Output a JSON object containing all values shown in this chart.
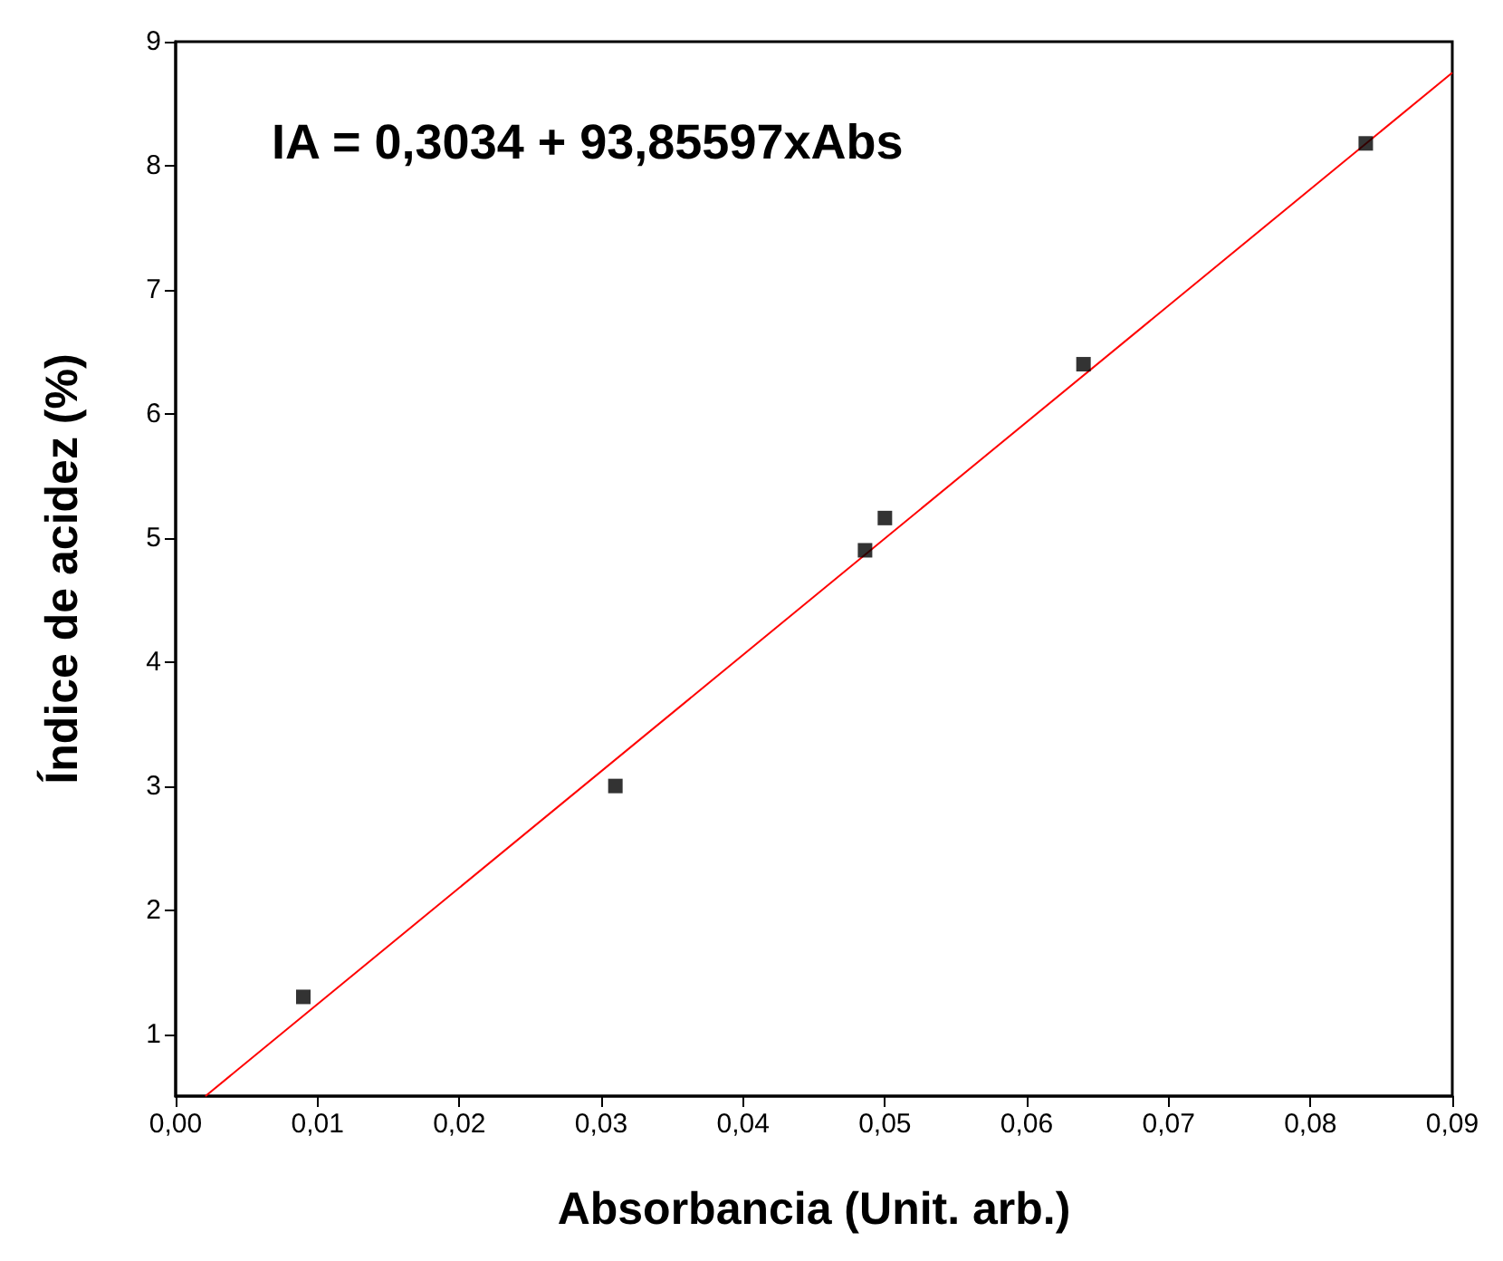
{
  "chart_data": {
    "type": "scatter",
    "xlabel": "Absorbancia (Unit. arb.)",
    "ylabel": "Índice de acidez (%)",
    "annotations": [
      "IA = 0,3034 + 93,85597xAbs"
    ],
    "marker": "square",
    "series": [
      {
        "color": "#000000",
        "x": [
          0.009,
          0.031,
          0.0486,
          0.05,
          0.064,
          0.0839
        ],
        "values": [
          1.3,
          3.0,
          4.9,
          5.16,
          6.4,
          8.18
        ]
      },
      {
        "type": "line",
        "color": "#ff0000",
        "marker": "none",
        "x": [
          0.0021,
          0.09
        ],
        "values": [
          0.5,
          8.75
        ]
      }
    ],
    "xlim": [
      0,
      0.09
    ],
    "xticks": [
      {
        "value": 0,
        "label": "0,00"
      },
      {
        "value": 0.01,
        "label": "0,01"
      },
      {
        "value": 0.02,
        "label": "0,02"
      },
      {
        "value": 0.03,
        "label": "0,03"
      },
      {
        "value": 0.04,
        "label": "0,04"
      },
      {
        "value": 0.05,
        "label": "0,05"
      },
      {
        "value": 0.06,
        "label": "0,06"
      },
      {
        "value": 0.07,
        "label": "0,07"
      },
      {
        "value": 0.08,
        "label": "0,08"
      },
      {
        "value": 0.09,
        "label": "0,09"
      }
    ],
    "ylim": [
      0.5,
      9
    ],
    "yticks": [
      1,
      2,
      3,
      4,
      5,
      6,
      7,
      8,
      9
    ]
  }
}
